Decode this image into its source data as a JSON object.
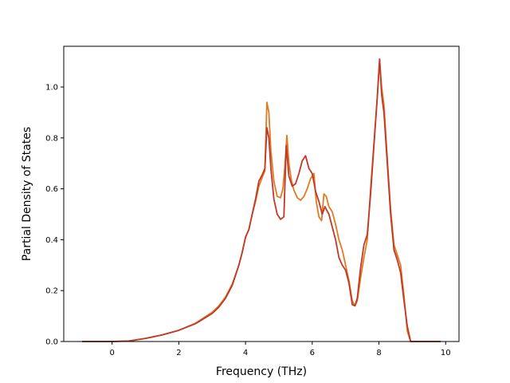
{
  "chart_data": {
    "type": "line",
    "title": "",
    "xlabel": "Frequency (THz)",
    "ylabel": "Partial Density of States",
    "xlim": [
      -1.45,
      10.4
    ],
    "ylim": [
      0.0,
      1.16
    ],
    "xticks": [
      0,
      2,
      4,
      6,
      8,
      10
    ],
    "xtick_labels": [
      "0",
      "2",
      "4",
      "6",
      "8",
      "10"
    ],
    "yticks": [
      0.0,
      0.2,
      0.4,
      0.6,
      0.8,
      1.0
    ],
    "ytick_labels": [
      "0.0",
      "0.2",
      "0.4",
      "0.6",
      "0.8",
      "1.0"
    ],
    "grid": false,
    "legend": "none",
    "series": [
      {
        "color": "#e07b20",
        "points": [
          [
            -0.9,
            0.0
          ],
          [
            -0.4,
            0.0
          ],
          [
            0.0,
            0.0
          ],
          [
            0.5,
            0.002
          ],
          [
            1.0,
            0.012
          ],
          [
            1.5,
            0.026
          ],
          [
            2.0,
            0.044
          ],
          [
            2.5,
            0.072
          ],
          [
            3.0,
            0.115
          ],
          [
            3.2,
            0.14
          ],
          [
            3.4,
            0.175
          ],
          [
            3.6,
            0.225
          ],
          [
            3.8,
            0.3
          ],
          [
            3.9,
            0.35
          ],
          [
            4.0,
            0.41
          ],
          [
            4.1,
            0.44
          ],
          [
            4.2,
            0.5
          ],
          [
            4.3,
            0.55
          ],
          [
            4.4,
            0.61
          ],
          [
            4.5,
            0.645
          ],
          [
            4.58,
            0.67
          ],
          [
            4.64,
            0.94
          ],
          [
            4.7,
            0.9
          ],
          [
            4.76,
            0.75
          ],
          [
            4.85,
            0.63
          ],
          [
            4.95,
            0.57
          ],
          [
            5.05,
            0.565
          ],
          [
            5.12,
            0.6
          ],
          [
            5.18,
            0.69
          ],
          [
            5.24,
            0.81
          ],
          [
            5.3,
            0.7
          ],
          [
            5.38,
            0.63
          ],
          [
            5.45,
            0.595
          ],
          [
            5.55,
            0.565
          ],
          [
            5.65,
            0.555
          ],
          [
            5.75,
            0.57
          ],
          [
            5.85,
            0.6
          ],
          [
            5.95,
            0.64
          ],
          [
            6.05,
            0.66
          ],
          [
            6.12,
            0.55
          ],
          [
            6.2,
            0.49
          ],
          [
            6.28,
            0.475
          ],
          [
            6.35,
            0.58
          ],
          [
            6.42,
            0.57
          ],
          [
            6.5,
            0.53
          ],
          [
            6.6,
            0.51
          ],
          [
            6.7,
            0.46
          ],
          [
            6.8,
            0.4
          ],
          [
            6.9,
            0.36
          ],
          [
            7.0,
            0.3
          ],
          [
            7.1,
            0.24
          ],
          [
            7.2,
            0.16
          ],
          [
            7.28,
            0.14
          ],
          [
            7.35,
            0.16
          ],
          [
            7.45,
            0.25
          ],
          [
            7.55,
            0.33
          ],
          [
            7.65,
            0.4
          ],
          [
            7.75,
            0.6
          ],
          [
            7.85,
            0.78
          ],
          [
            7.95,
            0.96
          ],
          [
            8.02,
            1.105
          ],
          [
            8.08,
            1.0
          ],
          [
            8.15,
            0.93
          ],
          [
            8.25,
            0.72
          ],
          [
            8.35,
            0.52
          ],
          [
            8.45,
            0.38
          ],
          [
            8.55,
            0.34
          ],
          [
            8.65,
            0.3
          ],
          [
            8.75,
            0.18
          ],
          [
            8.85,
            0.04
          ],
          [
            8.95,
            0.0
          ],
          [
            9.3,
            0.0
          ],
          [
            9.85,
            0.0
          ]
        ]
      },
      {
        "color": "#c0392b",
        "points": [
          [
            -0.9,
            0.0
          ],
          [
            -0.4,
            0.0
          ],
          [
            0.0,
            0.0
          ],
          [
            0.5,
            0.002
          ],
          [
            1.0,
            0.012
          ],
          [
            1.5,
            0.026
          ],
          [
            2.0,
            0.044
          ],
          [
            2.5,
            0.07
          ],
          [
            3.0,
            0.11
          ],
          [
            3.2,
            0.135
          ],
          [
            3.4,
            0.17
          ],
          [
            3.6,
            0.22
          ],
          [
            3.8,
            0.3
          ],
          [
            3.9,
            0.35
          ],
          [
            4.0,
            0.41
          ],
          [
            4.1,
            0.44
          ],
          [
            4.2,
            0.5
          ],
          [
            4.3,
            0.56
          ],
          [
            4.4,
            0.63
          ],
          [
            4.5,
            0.655
          ],
          [
            4.58,
            0.68
          ],
          [
            4.64,
            0.84
          ],
          [
            4.7,
            0.8
          ],
          [
            4.76,
            0.68
          ],
          [
            4.85,
            0.56
          ],
          [
            4.95,
            0.5
          ],
          [
            5.05,
            0.48
          ],
          [
            5.15,
            0.49
          ],
          [
            5.22,
            0.77
          ],
          [
            5.3,
            0.65
          ],
          [
            5.4,
            0.61
          ],
          [
            5.5,
            0.62
          ],
          [
            5.6,
            0.66
          ],
          [
            5.7,
            0.71
          ],
          [
            5.8,
            0.73
          ],
          [
            5.9,
            0.68
          ],
          [
            6.0,
            0.66
          ],
          [
            6.1,
            0.59
          ],
          [
            6.2,
            0.55
          ],
          [
            6.3,
            0.5
          ],
          [
            6.38,
            0.53
          ],
          [
            6.5,
            0.5
          ],
          [
            6.6,
            0.45
          ],
          [
            6.7,
            0.4
          ],
          [
            6.8,
            0.33
          ],
          [
            6.9,
            0.3
          ],
          [
            7.0,
            0.28
          ],
          [
            7.1,
            0.23
          ],
          [
            7.2,
            0.145
          ],
          [
            7.28,
            0.14
          ],
          [
            7.35,
            0.17
          ],
          [
            7.45,
            0.29
          ],
          [
            7.55,
            0.38
          ],
          [
            7.65,
            0.42
          ],
          [
            7.75,
            0.58
          ],
          [
            7.85,
            0.77
          ],
          [
            7.95,
            0.96
          ],
          [
            8.02,
            1.11
          ],
          [
            8.08,
            0.97
          ],
          [
            8.15,
            0.9
          ],
          [
            8.25,
            0.7
          ],
          [
            8.35,
            0.5
          ],
          [
            8.45,
            0.36
          ],
          [
            8.55,
            0.32
          ],
          [
            8.65,
            0.27
          ],
          [
            8.75,
            0.16
          ],
          [
            8.85,
            0.06
          ],
          [
            8.95,
            0.0
          ],
          [
            9.3,
            0.0
          ],
          [
            9.85,
            0.0
          ]
        ]
      }
    ]
  }
}
